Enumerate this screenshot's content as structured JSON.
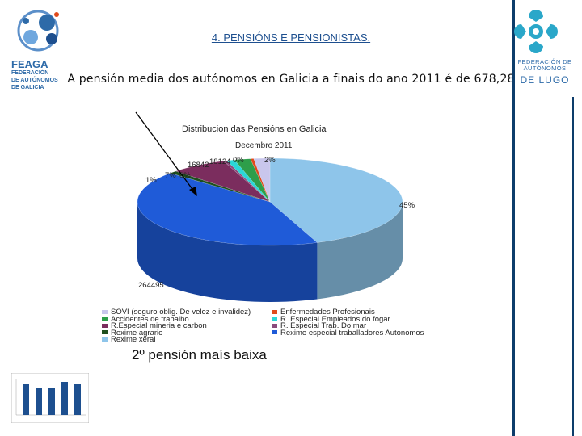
{
  "header": {
    "title": "4. PENSIÓNS E PENSIONISTAS.",
    "subtitle": "A pensión media dos autónomos en Galicia a finais do ano 2011 é de 678,28"
  },
  "logos": {
    "left": {
      "name": "FEAGA",
      "line1": "FEDERACIÓN",
      "line2": "DE AUTÓNOMOS",
      "line3": "DE GALICIA",
      "icon": "feaga-logo-icon"
    },
    "right": {
      "line1": "FEDERACIÓN DE",
      "line2": "AUTÓNOMOS",
      "name": "DE LUGO",
      "icon": "lugo-logo-icon"
    }
  },
  "colors": {
    "accent": "#2d6aa8",
    "bar": "#0d3d6b"
  },
  "chart_data": {
    "type": "pie",
    "title": "Distribucion das Pensións en Galicia",
    "subtitle": "Decembro 2011",
    "slices": [
      {
        "name": "Reximes xeral",
        "value": 45,
        "color": "#8ec5ea"
      },
      {
        "name": "Rexime especial traballadores Autonomos",
        "value": 43,
        "color": "#1f5bd8"
      },
      {
        "name": "Rexime agrario",
        "value": 1,
        "color": "#1e4f1e"
      },
      {
        "name": "R.Especial mineria e carbon",
        "value": 7,
        "color": "#7b2d5e"
      },
      {
        "name": "R. Especial Trab. Do mar",
        "value": 0,
        "color": "#8a4b7c"
      },
      {
        "name": "R. Especial Empleados do fogar",
        "value": 1,
        "color": "#2bd7d7"
      },
      {
        "name": "Accidentes de trabalho",
        "value": 2,
        "color": "#2e9e4a"
      },
      {
        "name": "Enfermedades Profesionais",
        "value": 0,
        "color": "#e04a1c"
      },
      {
        "name": "SOVI (seguro oblig. De velez e invalidez)",
        "value": 2,
        "color": "#c9c6ec"
      }
    ],
    "labels": {
      "big": "45%",
      "autonomos": "264495",
      "agrario": "1%",
      "mineria": "7%",
      "mar": "0%",
      "fogar_count": "16842",
      "accidentes": "18124",
      "pct0": "0%",
      "sovi": "2%",
      "sovi_count": "2%"
    }
  },
  "legend": [
    {
      "label": "SOVI (seguro  oblig. De velez e invalidez)",
      "color": "#c9c6ec"
    },
    {
      "label": "Enfermedades Profesionais",
      "color": "#e04a1c"
    },
    {
      "label": "Accidentes de trabalho",
      "color": "#2e9e4a"
    },
    {
      "label": "R. Especial Empleados do fogar",
      "color": "#2bd7d7"
    },
    {
      "label": "R.Especial mineria e carbon",
      "color": "#7b2d5e"
    },
    {
      "label": "R. Especial Trab. Do mar",
      "color": "#8a4b7c"
    },
    {
      "label": "Rexime agrario",
      "color": "#1e4f1e"
    },
    {
      "label": "Rexime especial traballadores Autonomos",
      "color": "#1f5bd8"
    },
    {
      "label": "Rexime xeral",
      "color": "#8ec5ea"
    }
  ],
  "caption": "2º pensión maís baixa"
}
